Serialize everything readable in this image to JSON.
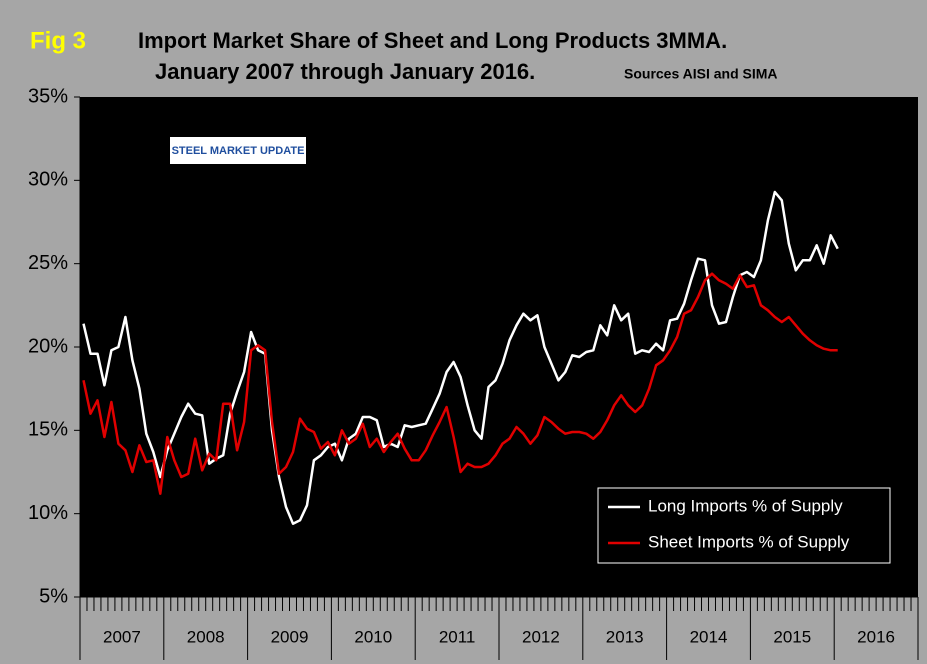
{
  "chart_data": {
    "type": "line",
    "fig_label": "Fig 3",
    "title": "Import Market Share of Sheet and Long Products 3MMA.",
    "subtitle": "January 2007 through January 2016.",
    "source": "Sources AISI and SIMA",
    "logo": "STEEL MARKET UPDATE",
    "x_labels": [
      "2007",
      "2008",
      "2009",
      "2010",
      "2011",
      "2012",
      "2013",
      "2014",
      "2015",
      "2016"
    ],
    "xlim": [
      0,
      120
    ],
    "ylim": [
      5,
      35
    ],
    "yticks": [
      {
        "value": 5,
        "label": "5%"
      },
      {
        "value": 10,
        "label": "10%"
      },
      {
        "value": 15,
        "label": "15%"
      },
      {
        "value": 20,
        "label": "20%"
      },
      {
        "value": 25,
        "label": "25%"
      },
      {
        "value": 30,
        "label": "30%"
      },
      {
        "value": 35,
        "label": "35%"
      }
    ],
    "series": [
      {
        "name": "Long Imports % of Supply",
        "color": "#ffffff",
        "values": [
          21.4,
          19.6,
          19.6,
          17.7,
          19.8,
          20.0,
          21.8,
          19.2,
          17.5,
          14.8,
          13.7,
          12.2,
          13.8,
          14.8,
          15.8,
          16.6,
          16.0,
          15.9,
          13.0,
          13.3,
          13.5,
          16.0,
          17.3,
          18.5,
          20.9,
          19.8,
          19.6,
          15.0,
          12.2,
          10.4,
          9.4,
          9.6,
          10.5,
          13.2,
          13.5,
          14.0,
          14.2,
          13.2,
          14.5,
          14.8,
          15.8,
          15.8,
          15.6,
          14.0,
          14.2,
          14.0,
          15.3,
          15.2,
          15.3,
          15.4,
          16.3,
          17.2,
          18.5,
          19.1,
          18.2,
          16.5,
          15.0,
          14.5,
          17.6,
          18.0,
          19.0,
          20.4,
          21.3,
          22.0,
          21.6,
          21.9,
          20.0,
          19.0,
          18.0,
          18.5,
          19.5,
          19.4,
          19.7,
          19.8,
          21.3,
          20.7,
          22.5,
          21.6,
          22.0,
          19.6,
          19.8,
          19.7,
          20.2,
          19.8,
          21.6,
          21.7,
          22.6,
          24.0,
          25.3,
          25.2,
          22.5,
          21.4,
          21.5,
          23.0,
          24.3,
          24.5,
          24.2,
          25.2,
          27.6,
          29.3,
          28.8,
          26.2,
          24.6,
          25.2,
          25.2,
          26.1,
          25.0,
          26.7,
          25.9
        ]
      },
      {
        "name": "Sheet Imports % of Supply",
        "color": "#e00000",
        "values": [
          18.0,
          16.0,
          16.8,
          14.6,
          16.7,
          14.2,
          13.8,
          12.5,
          14.1,
          13.1,
          13.2,
          11.2,
          14.6,
          13.2,
          12.2,
          12.4,
          14.5,
          12.6,
          13.6,
          13.2,
          16.6,
          16.6,
          13.8,
          15.5,
          19.8,
          20.1,
          19.8,
          15.5,
          12.4,
          12.8,
          13.7,
          15.7,
          15.1,
          14.9,
          13.9,
          14.3,
          13.5,
          15.0,
          14.2,
          14.5,
          15.4,
          14.0,
          14.5,
          13.7,
          14.3,
          14.8,
          13.9,
          13.2,
          13.2,
          13.8,
          14.7,
          15.5,
          16.4,
          14.6,
          12.5,
          13.0,
          12.8,
          12.8,
          13.0,
          13.5,
          14.2,
          14.5,
          15.2,
          14.8,
          14.2,
          14.7,
          15.8,
          15.5,
          15.1,
          14.8,
          14.9,
          14.9,
          14.8,
          14.5,
          14.9,
          15.6,
          16.5,
          17.1,
          16.5,
          16.1,
          16.5,
          17.5,
          18.9,
          19.2,
          19.8,
          20.6,
          22.0,
          22.2,
          23.0,
          24.0,
          24.4,
          24.0,
          23.8,
          23.5,
          24.3,
          23.6,
          23.7,
          22.5,
          22.2,
          21.8,
          21.5,
          21.8,
          21.3,
          20.8,
          20.4,
          20.1,
          19.9,
          19.8,
          19.8
        ]
      }
    ]
  }
}
